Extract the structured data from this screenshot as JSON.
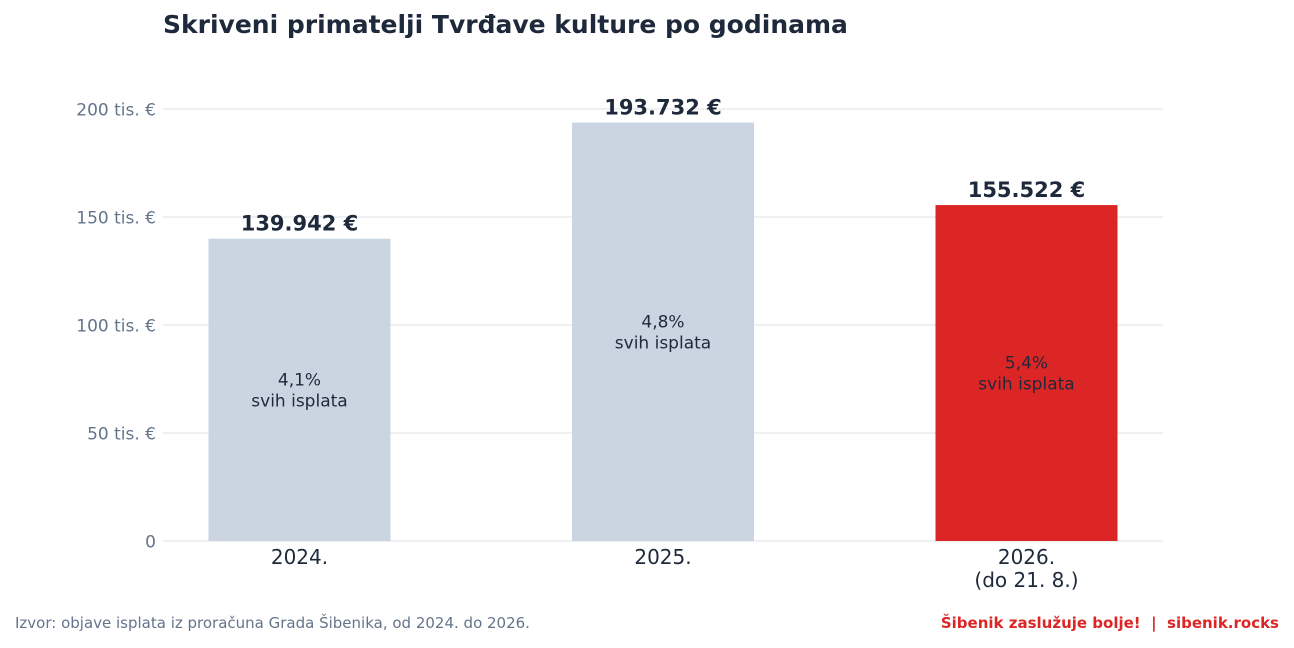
{
  "chart_data": {
    "type": "bar",
    "title": "Skriveni primatelji Tvrđave kulture po godinama",
    "categories": [
      "2024.",
      "2025.",
      "2026.\n(do 21. 8.)"
    ],
    "values": [
      139942,
      193732,
      155522
    ],
    "value_labels": [
      "139.942 €",
      "193.732 €",
      "155.522 €"
    ],
    "inner_labels": [
      "4,1%\nsvih isplata",
      "4,8%\nsvih isplata",
      "5,4%\nsvih isplata"
    ],
    "bar_colors": [
      "#cbd5e1",
      "#cbd5e1",
      "#dc2626"
    ],
    "ylim": [
      0,
      200000
    ],
    "yticks": [
      0,
      50000,
      100000,
      150000,
      200000
    ],
    "ytick_labels": [
      "0",
      "50 tis. €",
      "100 tis. €",
      "150 tis. €",
      "200 tis. €"
    ],
    "xlabel": "",
    "ylabel": "",
    "grid": true
  },
  "footer": {
    "source": "Izvor: objave isplata iz proračuna Grada Šibenika, od 2024. do 2026.",
    "brand_name": "Šibenik zaslužuje bolje!",
    "separator": "|",
    "brand_url": "sibenik.rocks"
  }
}
